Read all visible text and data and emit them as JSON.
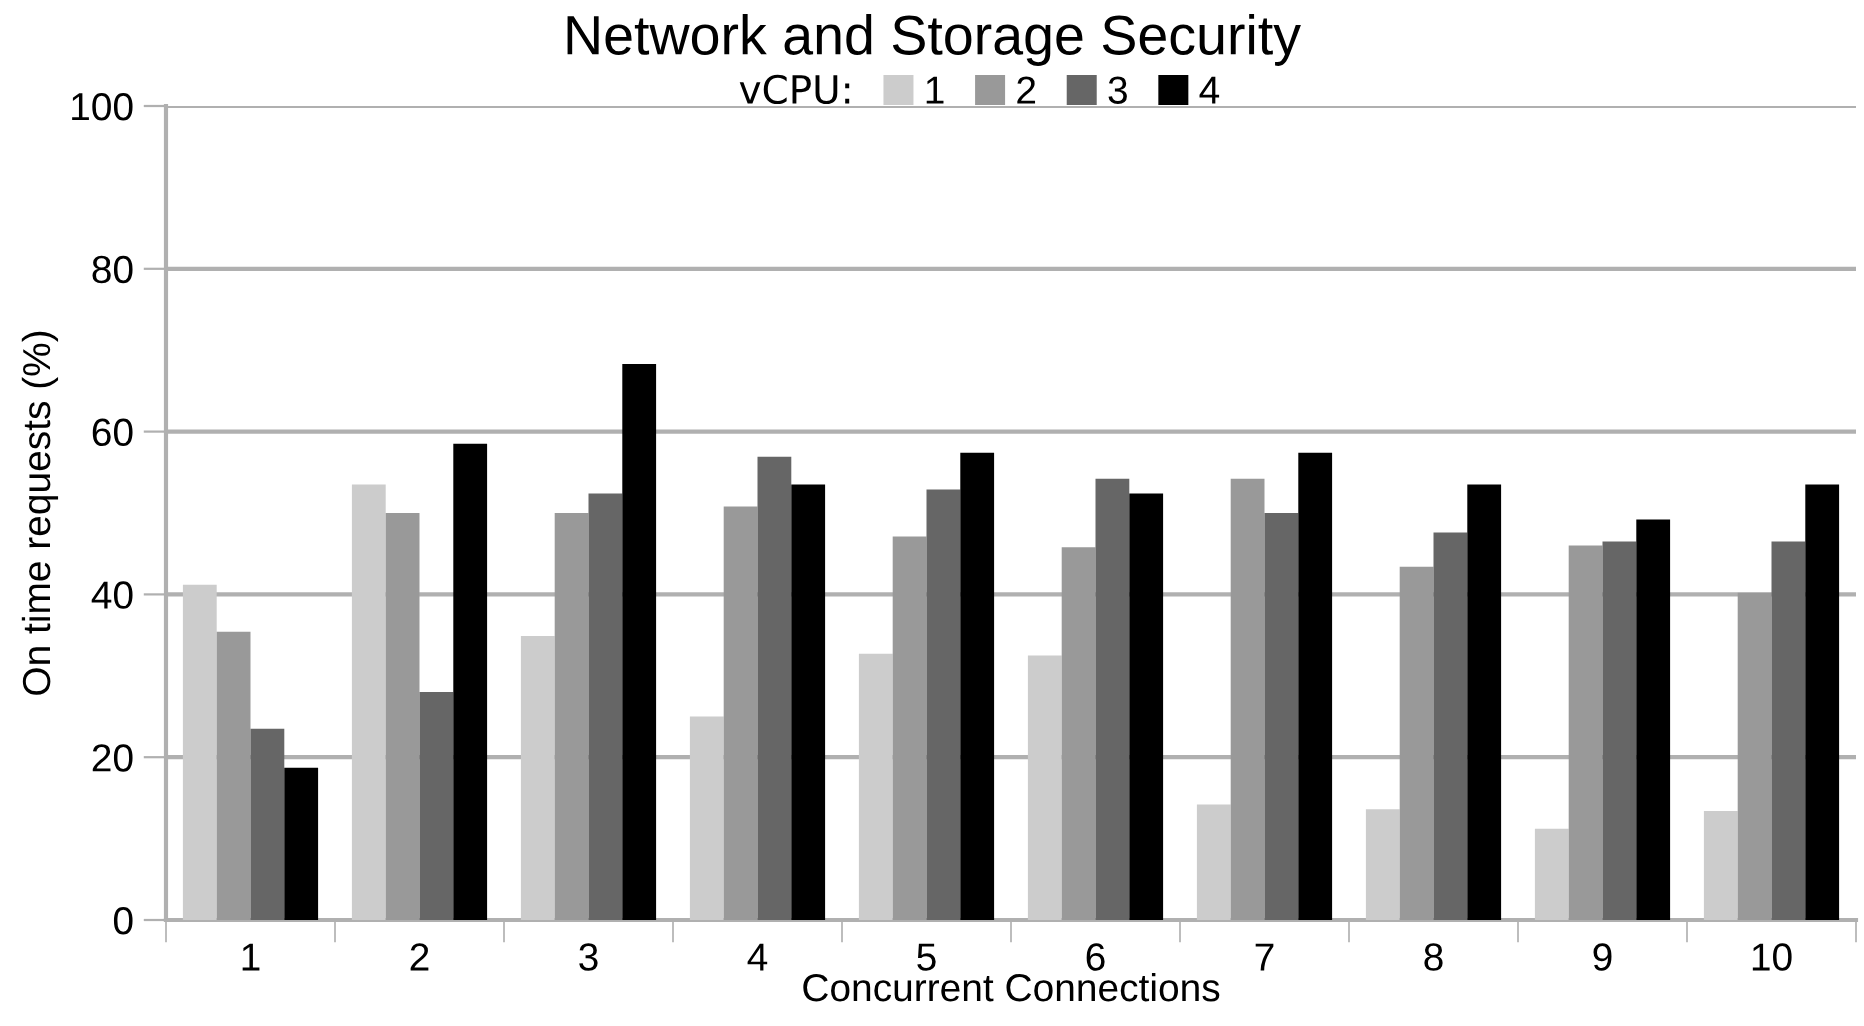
{
  "chart_data": {
    "type": "bar",
    "title": "Network and Storage Security",
    "xlabel": "Concurrent Connections",
    "ylabel": "On time requests (%)",
    "legend_title": "vCPU:",
    "legend": "top",
    "categories": [
      "1",
      "2",
      "3",
      "4",
      "5",
      "6",
      "7",
      "8",
      "9",
      "10"
    ],
    "series": [
      {
        "name": "1",
        "color": "#cccccc",
        "values": [
          41.2,
          53.5,
          34.9,
          25,
          32.7,
          32.5,
          14.2,
          13.6,
          11.2,
          13.4
        ]
      },
      {
        "name": "2",
        "color": "#999999",
        "values": [
          35.4,
          50,
          50,
          50.8,
          47.1,
          45.8,
          54.2,
          43.4,
          46,
          40.2
        ]
      },
      {
        "name": "3",
        "color": "#666666",
        "values": [
          23.5,
          28,
          52.4,
          56.9,
          52.9,
          54.2,
          50,
          47.6,
          46.5,
          46.5
        ]
      },
      {
        "name": "4",
        "color": "#000000",
        "values": [
          18.7,
          58.5,
          68.3,
          53.5,
          57.4,
          52.4,
          57.4,
          53.5,
          49.2,
          53.5
        ]
      }
    ],
    "ylim": [
      0,
      100
    ],
    "yticks": [
      0,
      20,
      40,
      60,
      80,
      100
    ],
    "grid": "y"
  }
}
